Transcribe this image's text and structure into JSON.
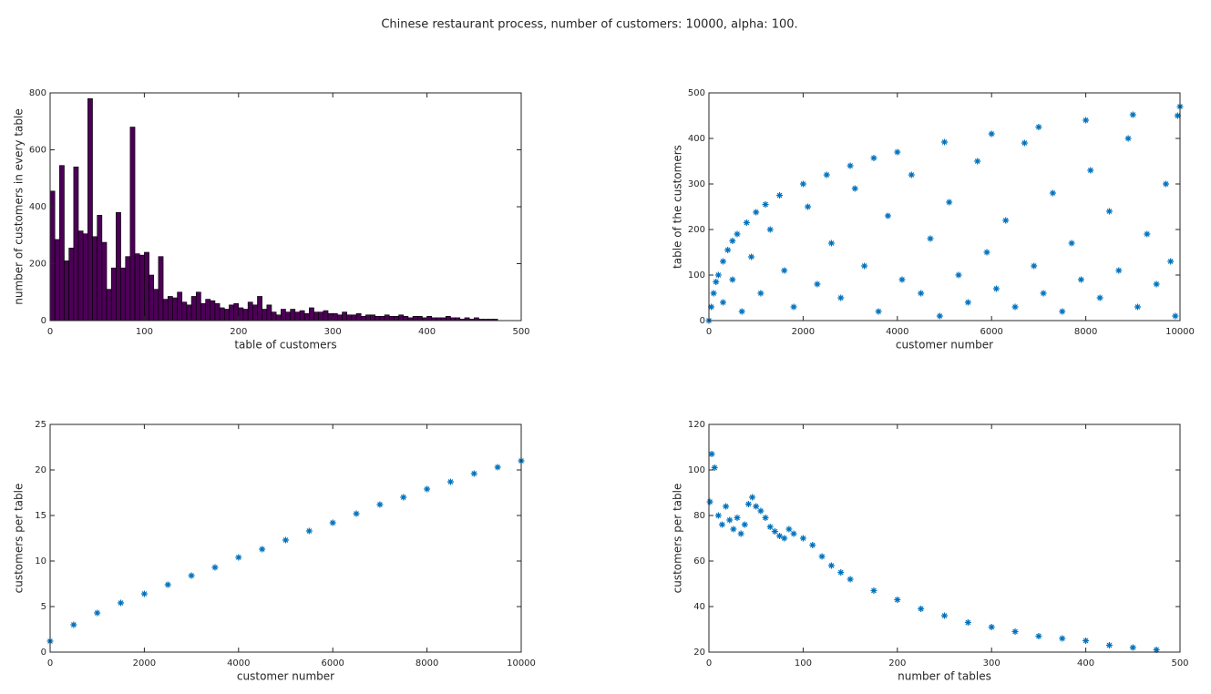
{
  "title": "Chinese restaurant process, number of customers: 10000, alpha: 100.",
  "chart_data": [
    {
      "type": "histogram",
      "xlabel": "table of customers",
      "ylabel": "number of customers in every table",
      "color": "#4b0055",
      "edgecolor": "#000000",
      "bins": [
        0,
        5,
        10,
        15,
        20,
        25,
        30,
        35,
        40,
        45,
        50,
        55,
        60,
        65,
        70,
        75,
        80,
        85,
        90,
        95,
        100,
        105,
        110,
        115,
        120,
        125,
        130,
        135,
        140,
        145,
        150,
        155,
        160,
        165,
        170,
        175,
        180,
        185,
        190,
        195,
        200,
        205,
        210,
        215,
        220,
        225,
        230,
        235,
        240,
        245,
        250,
        255,
        260,
        265,
        270,
        275,
        280,
        285,
        290,
        295,
        300,
        305,
        310,
        315,
        320,
        325,
        330,
        335,
        340,
        345,
        350,
        355,
        360,
        365,
        370,
        375,
        380,
        385,
        390,
        395,
        400,
        405,
        410,
        415,
        420,
        425,
        430,
        435,
        440,
        445,
        450,
        455,
        460,
        465,
        470,
        475
      ],
      "values": [
        455,
        285,
        545,
        210,
        255,
        540,
        315,
        305,
        780,
        295,
        370,
        275,
        110,
        185,
        380,
        185,
        225,
        680,
        235,
        230,
        240,
        160,
        110,
        225,
        75,
        85,
        80,
        100,
        65,
        55,
        85,
        100,
        60,
        75,
        70,
        60,
        45,
        40,
        55,
        60,
        45,
        40,
        65,
        55,
        85,
        40,
        55,
        30,
        20,
        40,
        30,
        40,
        30,
        35,
        25,
        45,
        30,
        30,
        35,
        25,
        25,
        20,
        30,
        20,
        20,
        25,
        15,
        20,
        20,
        15,
        15,
        20,
        15,
        15,
        20,
        15,
        10,
        15,
        15,
        10,
        15,
        10,
        10,
        10,
        15,
        10,
        10,
        5,
        10,
        5,
        10,
        5,
        5,
        5,
        5
      ],
      "xlim": [
        0,
        500
      ],
      "xticks": [
        0,
        100,
        200,
        300,
        400,
        500
      ],
      "ylim": [
        0,
        800
      ],
      "yticks": [
        0,
        200,
        400,
        600,
        800
      ]
    },
    {
      "type": "scatter",
      "xlabel": "customer number",
      "ylabel": "table of the customers",
      "color": "#0072bd",
      "x": [
        0,
        50,
        100,
        150,
        200,
        300,
        400,
        500,
        600,
        800,
        1000,
        1200,
        1500,
        2000,
        2500,
        3000,
        3500,
        4000,
        5000,
        6000,
        7000,
        8000,
        9000,
        10000,
        300,
        500,
        700,
        900,
        1100,
        1300,
        1600,
        1800,
        2100,
        2300,
        2600,
        2800,
        3100,
        3300,
        3600,
        3800,
        4100,
        4300,
        4500,
        4700,
        4900,
        5100,
        5300,
        5500,
        5700,
        5900,
        6100,
        6300,
        6500,
        6700,
        6900,
        7100,
        7300,
        7500,
        7700,
        7900,
        8100,
        8300,
        8500,
        8700,
        8900,
        9100,
        9300,
        9500,
        9700,
        9900,
        9950,
        9800
      ],
      "values": [
        0,
        30,
        60,
        85,
        100,
        130,
        155,
        175,
        190,
        215,
        238,
        255,
        275,
        300,
        320,
        340,
        357,
        370,
        392,
        410,
        425,
        440,
        452,
        470,
        40,
        90,
        20,
        140,
        60,
        200,
        110,
        30,
        250,
        80,
        170,
        50,
        290,
        120,
        20,
        230,
        90,
        320,
        60,
        180,
        10,
        260,
        100,
        40,
        350,
        150,
        70,
        220,
        30,
        390,
        120,
        60,
        280,
        20,
        170,
        90,
        330,
        50,
        240,
        110,
        400,
        30,
        190,
        80,
        300,
        10,
        450,
        130
      ],
      "xlim": [
        0,
        10000
      ],
      "xticks": [
        0,
        2000,
        4000,
        6000,
        8000,
        10000
      ],
      "ylim": [
        0,
        500
      ],
      "yticks": [
        0,
        100,
        200,
        300,
        400,
        500
      ]
    },
    {
      "type": "scatter",
      "xlabel": "customer number",
      "ylabel": "customers per table",
      "color": "#0072bd",
      "x": [
        0,
        500,
        1000,
        1500,
        2000,
        2500,
        3000,
        3500,
        4000,
        4500,
        5000,
        5500,
        6000,
        6500,
        7000,
        7500,
        8000,
        8500,
        9000,
        9500,
        10000
      ],
      "values": [
        1.2,
        3.0,
        4.3,
        5.4,
        6.4,
        7.4,
        8.4,
        9.3,
        10.4,
        11.3,
        12.3,
        13.3,
        14.2,
        15.2,
        16.2,
        17.0,
        17.9,
        18.7,
        19.6,
        20.3,
        21.0
      ],
      "xlim": [
        0,
        10000
      ],
      "xticks": [
        0,
        2000,
        4000,
        6000,
        8000,
        10000
      ],
      "ylim": [
        0,
        25
      ],
      "yticks": [
        0,
        5,
        10,
        15,
        20,
        25
      ]
    },
    {
      "type": "scatter",
      "xlabel": "number of tables",
      "ylabel": "customers per table",
      "color": "#0072bd",
      "x": [
        1,
        3,
        6,
        10,
        14,
        18,
        22,
        26,
        30,
        34,
        38,
        42,
        46,
        50,
        55,
        60,
        65,
        70,
        75,
        80,
        85,
        90,
        100,
        110,
        120,
        130,
        140,
        150,
        175,
        200,
        225,
        250,
        275,
        300,
        325,
        350,
        375,
        400,
        425,
        450,
        475
      ],
      "values": [
        86,
        107,
        101,
        80,
        76,
        84,
        78,
        74,
        79,
        72,
        76,
        85,
        88,
        84,
        82,
        79,
        75,
        73,
        71,
        70,
        74,
        72,
        70,
        67,
        62,
        58,
        55,
        52,
        47,
        43,
        39,
        36,
        33,
        31,
        29,
        27,
        26,
        25,
        23,
        22,
        21
      ],
      "xlim": [
        0,
        500
      ],
      "xticks": [
        0,
        100,
        200,
        300,
        400,
        500
      ],
      "ylim": [
        20,
        120
      ],
      "yticks": [
        20,
        40,
        60,
        80,
        100,
        120
      ]
    }
  ]
}
